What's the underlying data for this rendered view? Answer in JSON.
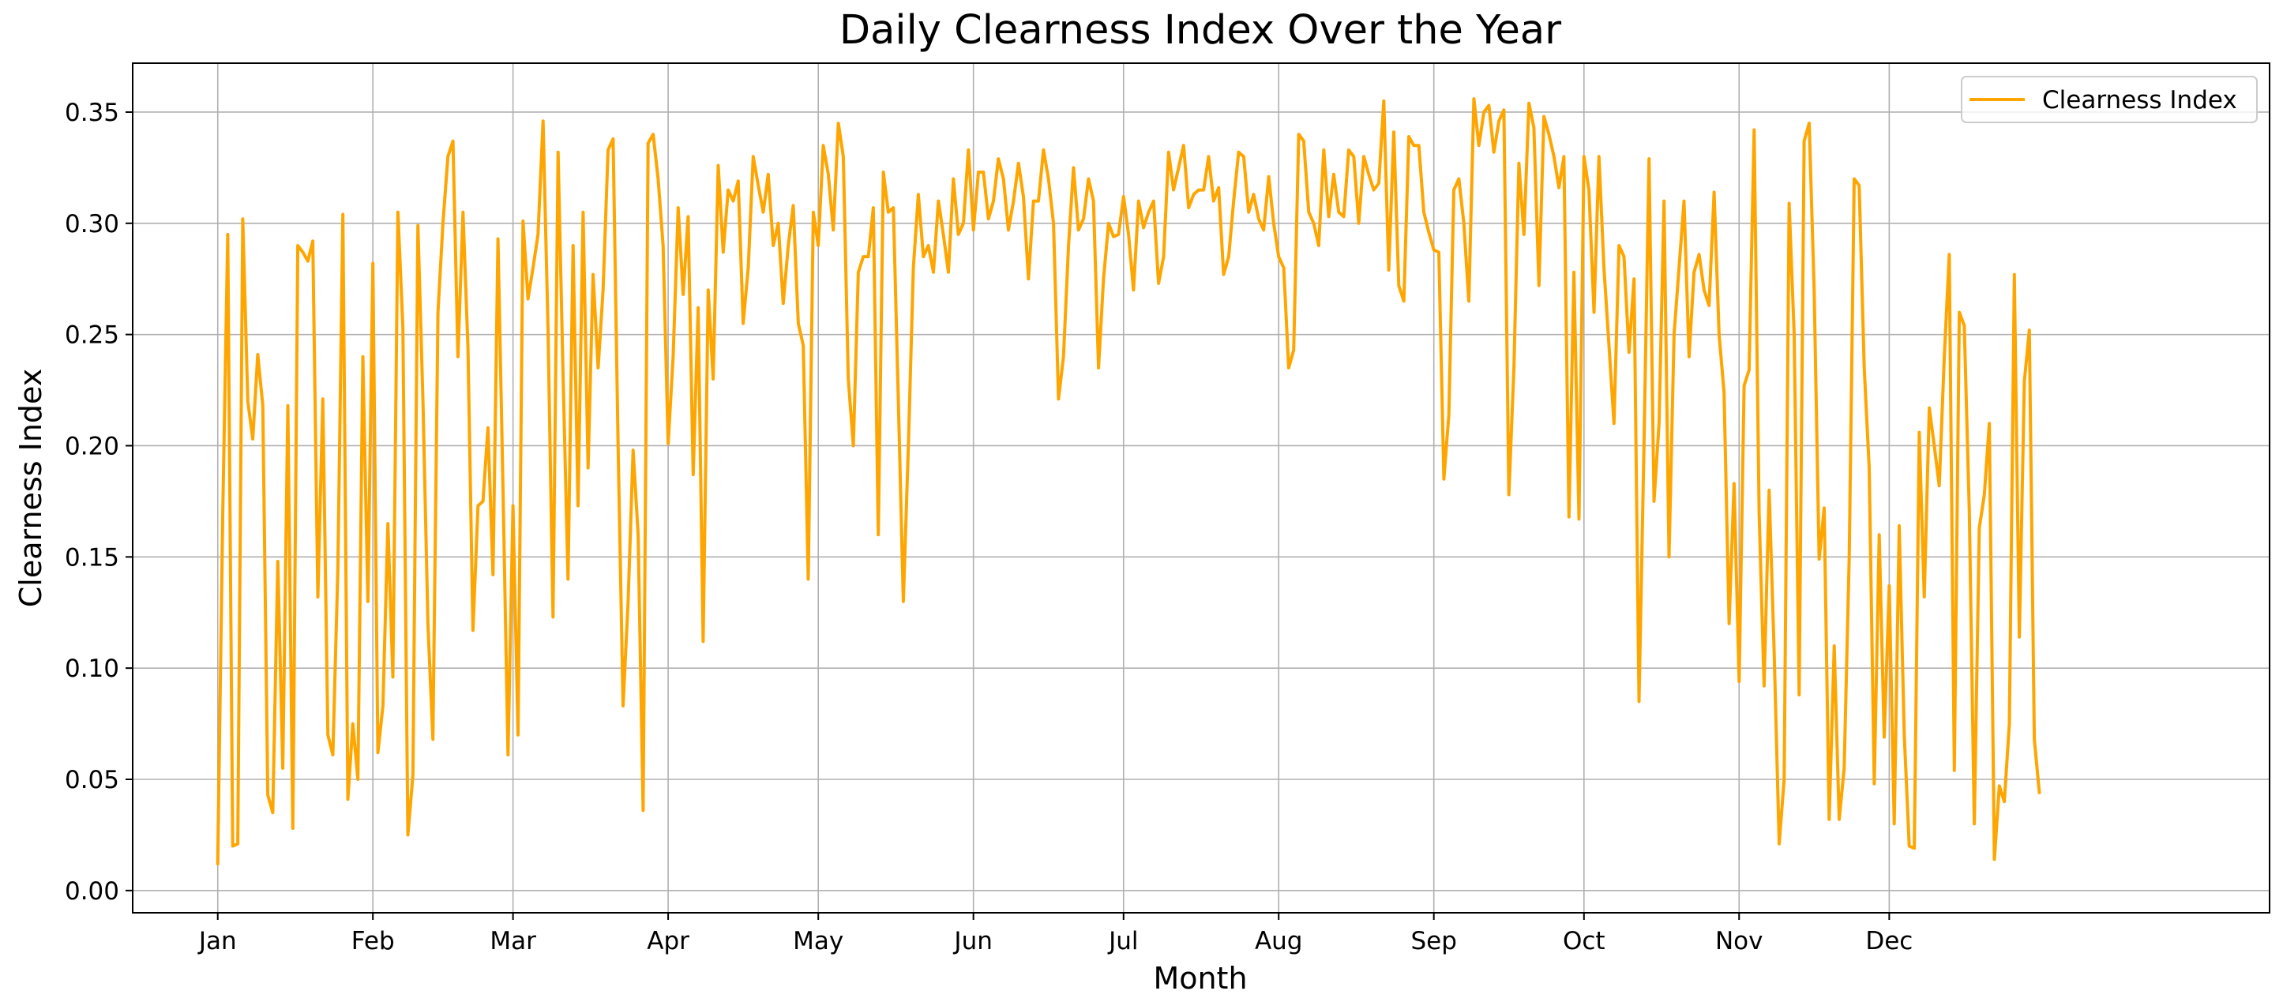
{
  "chart_data": {
    "type": "line",
    "title": "Daily Clearness Index Over the Year",
    "xlabel": "Month",
    "ylabel": "Clearness Index",
    "ylim": [
      -0.01,
      0.372
    ],
    "xlim": [
      -17,
      410
    ],
    "x_unit": "day of year (Jan 1 = 0)",
    "xticks": [
      {
        "value": 0,
        "label": "Jan"
      },
      {
        "value": 31,
        "label": "Feb"
      },
      {
        "value": 59,
        "label": "Mar"
      },
      {
        "value": 90,
        "label": "Apr"
      },
      {
        "value": 120,
        "label": "May"
      },
      {
        "value": 151,
        "label": "Jun"
      },
      {
        "value": 181,
        "label": "Jul"
      },
      {
        "value": 212,
        "label": "Aug"
      },
      {
        "value": 243,
        "label": "Sep"
      },
      {
        "value": 273,
        "label": "Oct"
      },
      {
        "value": 304,
        "label": "Nov"
      },
      {
        "value": 334,
        "label": "Dec"
      }
    ],
    "yticks": [
      {
        "value": 0.0,
        "label": "0.00"
      },
      {
        "value": 0.05,
        "label": "0.05"
      },
      {
        "value": 0.1,
        "label": "0.10"
      },
      {
        "value": 0.15,
        "label": "0.15"
      },
      {
        "value": 0.2,
        "label": "0.20"
      },
      {
        "value": 0.25,
        "label": "0.25"
      },
      {
        "value": 0.3,
        "label": "0.30"
      },
      {
        "value": 0.35,
        "label": "0.35"
      }
    ],
    "grid": true,
    "legend_position": "top-right",
    "series": [
      {
        "name": "Clearness Index",
        "color": "#FFA500",
        "values": [
          0.012,
          0.17,
          0.295,
          0.02,
          0.021,
          0.302,
          0.22,
          0.203,
          0.241,
          0.218,
          0.043,
          0.035,
          0.148,
          0.055,
          0.218,
          0.028,
          0.29,
          0.287,
          0.283,
          0.292,
          0.132,
          0.221,
          0.07,
          0.061,
          0.144,
          0.304,
          0.041,
          0.075,
          0.05,
          0.24,
          0.13,
          0.282,
          0.062,
          0.083,
          0.165,
          0.096,
          0.305,
          0.253,
          0.025,
          0.052,
          0.299,
          0.22,
          0.12,
          0.068,
          0.26,
          0.3,
          0.33,
          0.337,
          0.24,
          0.305,
          0.244,
          0.117,
          0.173,
          0.175,
          0.208,
          0.142,
          0.293,
          0.18,
          0.061,
          0.173,
          0.07,
          0.301,
          0.266,
          0.28,
          0.295,
          0.346,
          0.252,
          0.123,
          0.332,
          0.232,
          0.14,
          0.29,
          0.173,
          0.305,
          0.19,
          0.277,
          0.235,
          0.27,
          0.333,
          0.338,
          0.2,
          0.083,
          0.13,
          0.198,
          0.16,
          0.036,
          0.336,
          0.34,
          0.32,
          0.29,
          0.201,
          0.24,
          0.307,
          0.268,
          0.303,
          0.187,
          0.262,
          0.112,
          0.27,
          0.23,
          0.326,
          0.287,
          0.315,
          0.31,
          0.319,
          0.255,
          0.28,
          0.33,
          0.317,
          0.305,
          0.322,
          0.29,
          0.3,
          0.264,
          0.29,
          0.308,
          0.255,
          0.245,
          0.14,
          0.305,
          0.29,
          0.335,
          0.322,
          0.297,
          0.345,
          0.33,
          0.23,
          0.2,
          0.278,
          0.285,
          0.285,
          0.307,
          0.16,
          0.323,
          0.305,
          0.307,
          0.22,
          0.13,
          0.2,
          0.28,
          0.313,
          0.285,
          0.29,
          0.278,
          0.31,
          0.295,
          0.278,
          0.32,
          0.295,
          0.3,
          0.333,
          0.297,
          0.323,
          0.323,
          0.302,
          0.31,
          0.329,
          0.32,
          0.297,
          0.31,
          0.327,
          0.312,
          0.275,
          0.31,
          0.31,
          0.333,
          0.32,
          0.3,
          0.221,
          0.24,
          0.29,
          0.325,
          0.297,
          0.302,
          0.32,
          0.31,
          0.235,
          0.275,
          0.3,
          0.294,
          0.295,
          0.312,
          0.295,
          0.27,
          0.31,
          0.298,
          0.305,
          0.31,
          0.273,
          0.285,
          0.332,
          0.315,
          0.325,
          0.335,
          0.307,
          0.313,
          0.315,
          0.315,
          0.33,
          0.31,
          0.316,
          0.277,
          0.285,
          0.31,
          0.332,
          0.33,
          0.305,
          0.313,
          0.302,
          0.297,
          0.321,
          0.3,
          0.285,
          0.28,
          0.235,
          0.243,
          0.34,
          0.337,
          0.305,
          0.3,
          0.29,
          0.333,
          0.303,
          0.322,
          0.305,
          0.303,
          0.333,
          0.33,
          0.3,
          0.33,
          0.322,
          0.315,
          0.318,
          0.355,
          0.279,
          0.341,
          0.272,
          0.265,
          0.339,
          0.335,
          0.335,
          0.305,
          0.296,
          0.288,
          0.287,
          0.185,
          0.214,
          0.315,
          0.32,
          0.3,
          0.265,
          0.356,
          0.335,
          0.35,
          0.353,
          0.332,
          0.346,
          0.351,
          0.178,
          0.235,
          0.327,
          0.295,
          0.354,
          0.343,
          0.272,
          0.348,
          0.34,
          0.33,
          0.316,
          0.33,
          0.168,
          0.278,
          0.167,
          0.33,
          0.315,
          0.26,
          0.33,
          0.28,
          0.245,
          0.21,
          0.29,
          0.285,
          0.242,
          0.275,
          0.085,
          0.2,
          0.329,
          0.175,
          0.21,
          0.31,
          0.15,
          0.25,
          0.28,
          0.31,
          0.24,
          0.278,
          0.286,
          0.27,
          0.263,
          0.314,
          0.25,
          0.224,
          0.12,
          0.183,
          0.094,
          0.227,
          0.234,
          0.342,
          0.17,
          0.092,
          0.18,
          0.108,
          0.021,
          0.05,
          0.309,
          0.25,
          0.088,
          0.337,
          0.345,
          0.27,
          0.149,
          0.172,
          0.032,
          0.11,
          0.032,
          0.055,
          0.15,
          0.32,
          0.317,
          0.235,
          0.19,
          0.048,
          0.16,
          0.069,
          0.137,
          0.03,
          0.164,
          0.07,
          0.02,
          0.019,
          0.206,
          0.132,
          0.217,
          0.2,
          0.182,
          0.24,
          0.286,
          0.054,
          0.26,
          0.254,
          0.17,
          0.03,
          0.163,
          0.178,
          0.21,
          0.014,
          0.047,
          0.04,
          0.075,
          0.277,
          0.114,
          0.229,
          0.252,
          0.068,
          0.044
        ]
      }
    ]
  }
}
